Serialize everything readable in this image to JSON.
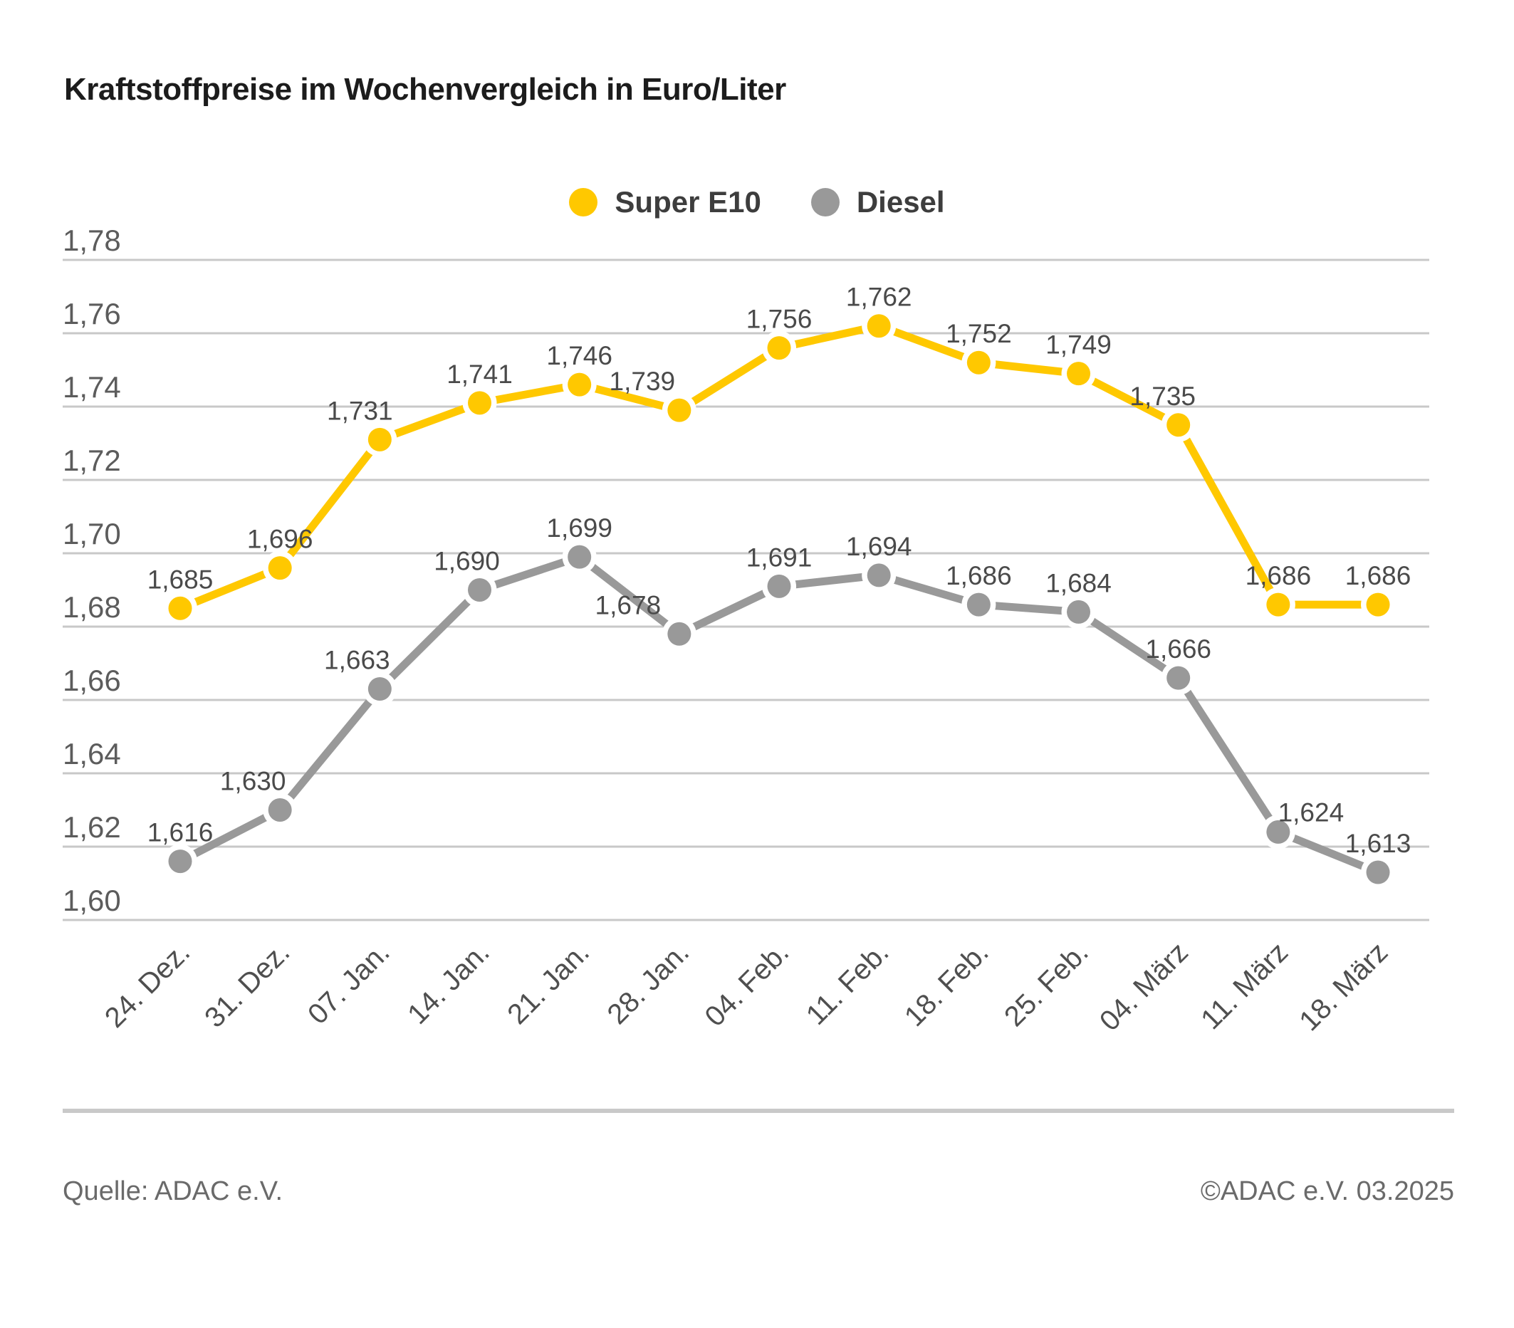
{
  "title": "Kraftstoffpreise im Wochenvergleich in Euro/Liter",
  "footer": {
    "source": "Quelle: ADAC e.V.",
    "copyright": "©ADAC e.V. 03.2025"
  },
  "colors": {
    "super_e10": "#FFC800",
    "diesel": "#999999",
    "gridline": "#c8c8c8",
    "axis_label": "#5c5c5c",
    "x_label": "#4f4f4f",
    "data_label": "#4a4a4a"
  },
  "chart_data": {
    "type": "line",
    "title": "Kraftstoffpreise im Wochenvergleich in Euro/Liter",
    "categories": [
      "24. Dez.",
      "31. Dez.",
      "07. Jan.",
      "14. Jan.",
      "21. Jan.",
      "28. Jan.",
      "04. Feb.",
      "11. Feb.",
      "18. Feb.",
      "25. Feb.",
      "04. März",
      "11. März",
      "18. März"
    ],
    "series": [
      {
        "name": "Super E10",
        "color": "#FFC800",
        "values": [
          1.685,
          1.696,
          1.731,
          1.741,
          1.746,
          1.739,
          1.756,
          1.762,
          1.752,
          1.749,
          1.735,
          1.686,
          1.686
        ],
        "labels": [
          "1,685",
          "1,696",
          "1,731",
          "1,741",
          "1,746",
          "1,739",
          "1,756",
          "1,762",
          "1,752",
          "1,749",
          "1,735",
          "1,686",
          "1,686"
        ]
      },
      {
        "name": "Diesel",
        "color": "#999999",
        "values": [
          1.616,
          1.63,
          1.663,
          1.69,
          1.699,
          1.678,
          1.691,
          1.694,
          1.686,
          1.684,
          1.666,
          1.624,
          1.613
        ],
        "labels": [
          "1,616",
          "1,630",
          "1,663",
          "1,690",
          "1,699",
          "1,678",
          "1,691",
          "1,694",
          "1,686",
          "1,684",
          "1,666",
          "1,624",
          "1,613"
        ]
      }
    ],
    "xlabel": "",
    "ylabel": "Euro/Liter",
    "ylim": [
      1.6,
      1.78
    ],
    "ytick_step": 0.02,
    "ytick_labels": [
      "1,78",
      "1,76",
      "1,74",
      "1,72",
      "1,70",
      "1,68",
      "1,66",
      "1,64",
      "1,62",
      "1,60"
    ],
    "grid": true,
    "legend_position": "top-center",
    "marker": "circle",
    "data_labels": true
  }
}
